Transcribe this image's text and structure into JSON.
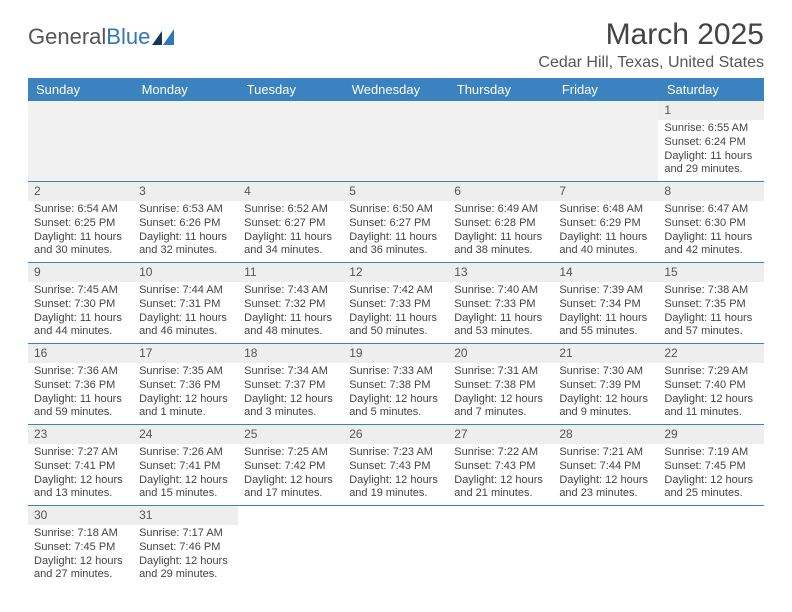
{
  "brand": {
    "part1": "General",
    "part2": "Blue"
  },
  "title": "March 2025",
  "location": "Cedar Hill, Texas, United States",
  "colors": {
    "header_bg": "#3b83c0",
    "daynum_bg": "#eeeeee",
    "rule": "#3b83c0"
  },
  "weekdays": [
    "Sunday",
    "Monday",
    "Tuesday",
    "Wednesday",
    "Thursday",
    "Friday",
    "Saturday"
  ],
  "first_weekday_index": 6,
  "days": [
    {
      "n": 1,
      "sunrise": "6:55 AM",
      "sunset": "6:24 PM",
      "daylight": "Daylight: 11 hours and 29 minutes."
    },
    {
      "n": 2,
      "sunrise": "6:54 AM",
      "sunset": "6:25 PM",
      "daylight": "Daylight: 11 hours and 30 minutes."
    },
    {
      "n": 3,
      "sunrise": "6:53 AM",
      "sunset": "6:26 PM",
      "daylight": "Daylight: 11 hours and 32 minutes."
    },
    {
      "n": 4,
      "sunrise": "6:52 AM",
      "sunset": "6:27 PM",
      "daylight": "Daylight: 11 hours and 34 minutes."
    },
    {
      "n": 5,
      "sunrise": "6:50 AM",
      "sunset": "6:27 PM",
      "daylight": "Daylight: 11 hours and 36 minutes."
    },
    {
      "n": 6,
      "sunrise": "6:49 AM",
      "sunset": "6:28 PM",
      "daylight": "Daylight: 11 hours and 38 minutes."
    },
    {
      "n": 7,
      "sunrise": "6:48 AM",
      "sunset": "6:29 PM",
      "daylight": "Daylight: 11 hours and 40 minutes."
    },
    {
      "n": 8,
      "sunrise": "6:47 AM",
      "sunset": "6:30 PM",
      "daylight": "Daylight: 11 hours and 42 minutes."
    },
    {
      "n": 9,
      "sunrise": "7:45 AM",
      "sunset": "7:30 PM",
      "daylight": "Daylight: 11 hours and 44 minutes."
    },
    {
      "n": 10,
      "sunrise": "7:44 AM",
      "sunset": "7:31 PM",
      "daylight": "Daylight: 11 hours and 46 minutes."
    },
    {
      "n": 11,
      "sunrise": "7:43 AM",
      "sunset": "7:32 PM",
      "daylight": "Daylight: 11 hours and 48 minutes."
    },
    {
      "n": 12,
      "sunrise": "7:42 AM",
      "sunset": "7:33 PM",
      "daylight": "Daylight: 11 hours and 50 minutes."
    },
    {
      "n": 13,
      "sunrise": "7:40 AM",
      "sunset": "7:33 PM",
      "daylight": "Daylight: 11 hours and 53 minutes."
    },
    {
      "n": 14,
      "sunrise": "7:39 AM",
      "sunset": "7:34 PM",
      "daylight": "Daylight: 11 hours and 55 minutes."
    },
    {
      "n": 15,
      "sunrise": "7:38 AM",
      "sunset": "7:35 PM",
      "daylight": "Daylight: 11 hours and 57 minutes."
    },
    {
      "n": 16,
      "sunrise": "7:36 AM",
      "sunset": "7:36 PM",
      "daylight": "Daylight: 11 hours and 59 minutes."
    },
    {
      "n": 17,
      "sunrise": "7:35 AM",
      "sunset": "7:36 PM",
      "daylight": "Daylight: 12 hours and 1 minute."
    },
    {
      "n": 18,
      "sunrise": "7:34 AM",
      "sunset": "7:37 PM",
      "daylight": "Daylight: 12 hours and 3 minutes."
    },
    {
      "n": 19,
      "sunrise": "7:33 AM",
      "sunset": "7:38 PM",
      "daylight": "Daylight: 12 hours and 5 minutes."
    },
    {
      "n": 20,
      "sunrise": "7:31 AM",
      "sunset": "7:38 PM",
      "daylight": "Daylight: 12 hours and 7 minutes."
    },
    {
      "n": 21,
      "sunrise": "7:30 AM",
      "sunset": "7:39 PM",
      "daylight": "Daylight: 12 hours and 9 minutes."
    },
    {
      "n": 22,
      "sunrise": "7:29 AM",
      "sunset": "7:40 PM",
      "daylight": "Daylight: 12 hours and 11 minutes."
    },
    {
      "n": 23,
      "sunrise": "7:27 AM",
      "sunset": "7:41 PM",
      "daylight": "Daylight: 12 hours and 13 minutes."
    },
    {
      "n": 24,
      "sunrise": "7:26 AM",
      "sunset": "7:41 PM",
      "daylight": "Daylight: 12 hours and 15 minutes."
    },
    {
      "n": 25,
      "sunrise": "7:25 AM",
      "sunset": "7:42 PM",
      "daylight": "Daylight: 12 hours and 17 minutes."
    },
    {
      "n": 26,
      "sunrise": "7:23 AM",
      "sunset": "7:43 PM",
      "daylight": "Daylight: 12 hours and 19 minutes."
    },
    {
      "n": 27,
      "sunrise": "7:22 AM",
      "sunset": "7:43 PM",
      "daylight": "Daylight: 12 hours and 21 minutes."
    },
    {
      "n": 28,
      "sunrise": "7:21 AM",
      "sunset": "7:44 PM",
      "daylight": "Daylight: 12 hours and 23 minutes."
    },
    {
      "n": 29,
      "sunrise": "7:19 AM",
      "sunset": "7:45 PM",
      "daylight": "Daylight: 12 hours and 25 minutes."
    },
    {
      "n": 30,
      "sunrise": "7:18 AM",
      "sunset": "7:45 PM",
      "daylight": "Daylight: 12 hours and 27 minutes."
    },
    {
      "n": 31,
      "sunrise": "7:17 AM",
      "sunset": "7:46 PM",
      "daylight": "Daylight: 12 hours and 29 minutes."
    }
  ],
  "labels": {
    "sunrise_prefix": "Sunrise: ",
    "sunset_prefix": "Sunset: "
  }
}
